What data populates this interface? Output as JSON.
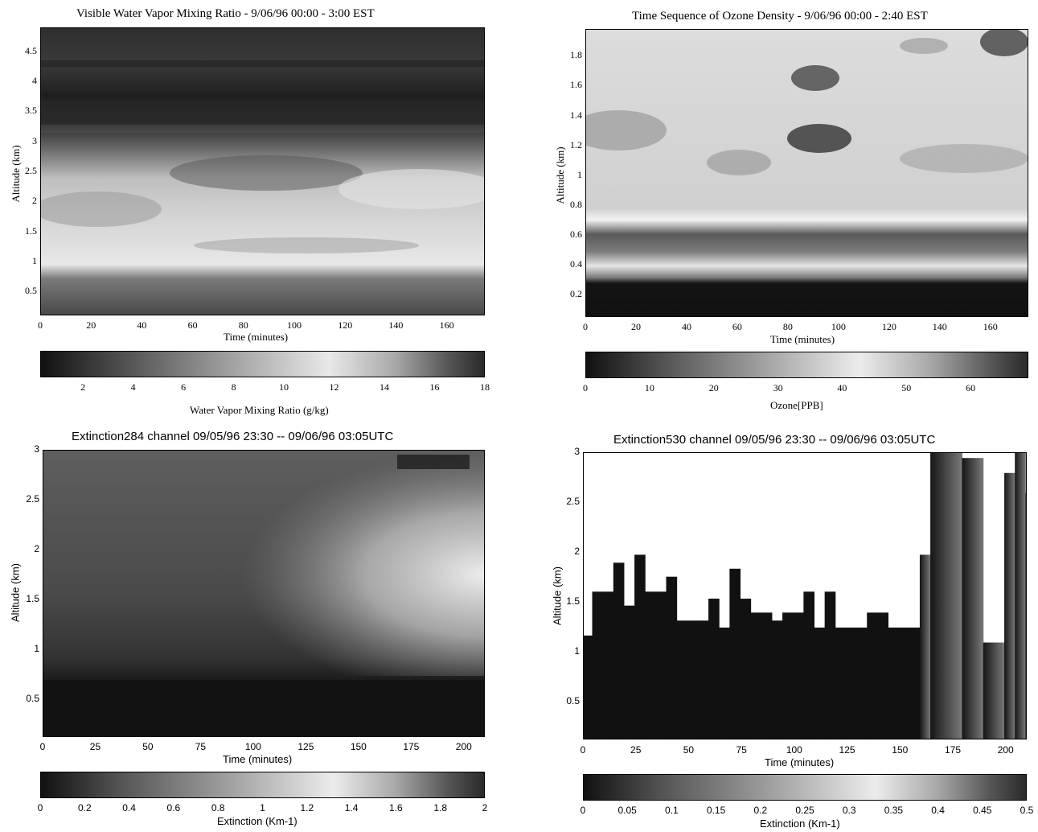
{
  "chart_data": [
    {
      "type": "heatmap",
      "title": "Visible Water Vapor Mixing Ratio - 9/06/96 00:00 - 3:00 EST",
      "xlabel": "Time (minutes)",
      "ylabel": "Altitude (km)",
      "xticks": [
        "0",
        "20",
        "40",
        "60",
        "80",
        "100",
        "120",
        "140",
        "160"
      ],
      "yticks": [
        "0.5",
        "1",
        "1.5",
        "2",
        "2.5",
        "3",
        "3.5",
        "4",
        "4.5"
      ],
      "xlim": [
        0,
        175
      ],
      "ylim": [
        0.1,
        4.9
      ],
      "colorbar": {
        "label": "Water Vapor Mixing Ratio (g/kg)",
        "ticks": [
          "2",
          "4",
          "6",
          "8",
          "10",
          "12",
          "14",
          "16",
          "18"
        ],
        "range": [
          0.3,
          18
        ]
      },
      "colormap": "gray-peak-middle"
    },
    {
      "type": "heatmap",
      "title": "Time Sequence of Ozone Density - 9/06/96 00:00 - 2:40 EST",
      "xlabel": "Time (minutes)",
      "ylabel": "Altitude (km)",
      "xticks": [
        "0",
        "20",
        "40",
        "60",
        "80",
        "100",
        "120",
        "140",
        "160"
      ],
      "yticks": [
        "0.2",
        "0.4",
        "0.6",
        "0.8",
        "1",
        "1.2",
        "1.4",
        "1.6",
        "1.8"
      ],
      "xlim": [
        0,
        175
      ],
      "ylim": [
        0.05,
        1.98
      ],
      "colorbar": {
        "label": "Ozone[PPB]",
        "ticks": [
          "0",
          "10",
          "20",
          "30",
          "40",
          "50",
          "60"
        ],
        "range": [
          0,
          69
        ]
      },
      "colormap": "gray-peak-middle"
    },
    {
      "type": "heatmap",
      "title": "Extinction284 channel 09/05/96   23:30 -- 09/06/96   03:05UTC",
      "xlabel": "Time (minutes)",
      "ylabel": "Altitude (km)",
      "xticks": [
        "0",
        "25",
        "50",
        "75",
        "100",
        "125",
        "150",
        "175",
        "200"
      ],
      "yticks": [
        "0.5",
        "1",
        "1.5",
        "2",
        "2.5",
        "3"
      ],
      "xlim": [
        0,
        210
      ],
      "ylim": [
        0.12,
        3
      ],
      "colorbar": {
        "label": "Extinction (Km-1)",
        "ticks": [
          "0",
          "0.2",
          "0.4",
          "0.6",
          "0.8",
          "1",
          "1.2",
          "1.4",
          "1.6",
          "1.8",
          "2"
        ],
        "range": [
          0,
          2
        ]
      },
      "colormap": "gray-peak-middle"
    },
    {
      "type": "heatmap",
      "title": "Extinction530 channel 09/05/96   23:30 -- 09/06/96   03:05UTC",
      "xlabel": "Time (minutes)",
      "ylabel": "Altitude (km)",
      "xticks": [
        "0",
        "25",
        "50",
        "75",
        "100",
        "125",
        "150",
        "175",
        "200"
      ],
      "yticks": [
        "0.5",
        "1",
        "1.5",
        "2",
        "2.5",
        "3"
      ],
      "xlim": [
        0,
        210
      ],
      "ylim": [
        0.12,
        3
      ],
      "colorbar": {
        "label": "Extinction (Km-1)",
        "ticks": [
          "0",
          "0.05",
          "0.1",
          "0.15",
          "0.2",
          "0.25",
          "0.3",
          "0.35",
          "0.4",
          "0.45",
          "0.5"
        ],
        "range": [
          0,
          0.5
        ]
      },
      "colormap": "gray-peak-middle",
      "data_top_profile": {
        "x": [
          0,
          4,
          14,
          19,
          24,
          29,
          39,
          44,
          54,
          59,
          64,
          69,
          74,
          79,
          89,
          94,
          104,
          109,
          114,
          119,
          124,
          134,
          144,
          159,
          164,
          179,
          189,
          199,
          204,
          209
        ],
        "top": [
          1.17,
          1.61,
          1.9,
          1.47,
          1.98,
          1.61,
          1.76,
          1.32,
          1.32,
          1.54,
          1.25,
          1.84,
          1.54,
          1.4,
          1.32,
          1.4,
          1.61,
          1.25,
          1.61,
          1.25,
          1.25,
          1.4,
          1.25,
          1.98,
          3.0,
          2.95,
          1.1,
          2.8,
          3.0,
          2.6
        ]
      }
    }
  ]
}
